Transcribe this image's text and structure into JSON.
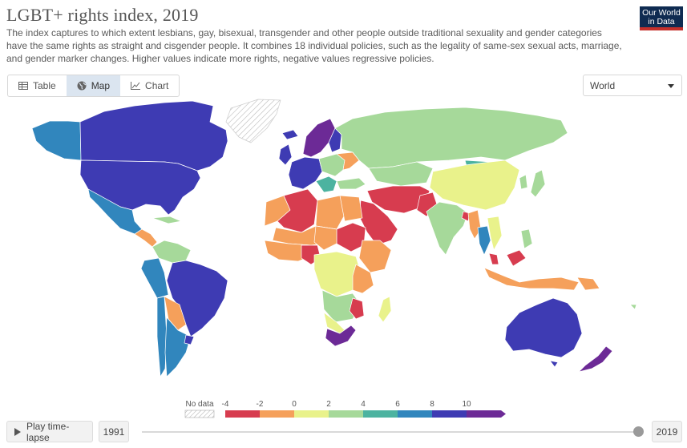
{
  "header": {
    "title": "LGBT+ rights index, 2019",
    "subtitle": "The index captures to which extent lesbians, gay, bisexual, transgender and other people outside traditional sexuality and gender categories have the same rights as straight and cisgender people. It combines 18 individual policies, such as the legality of same-sex sexual acts, marriage, and gender marker changes. Higher values indicate more rights, negative values regressive policies.",
    "logo_line1": "Our World",
    "logo_line2": "in Data"
  },
  "tabs": [
    {
      "label": "Table",
      "icon": "table-icon",
      "active": false
    },
    {
      "label": "Map",
      "icon": "globe-icon",
      "active": true
    },
    {
      "label": "Chart",
      "icon": "line-chart-icon",
      "active": false
    }
  ],
  "region_select": {
    "value": "World"
  },
  "legend": {
    "no_data_label": "No data",
    "ticks": [
      "-4",
      "-2",
      "0",
      "2",
      "4",
      "6",
      "8",
      "10"
    ],
    "bins": [
      {
        "from": -4,
        "to": -2,
        "color": "#d73c4f"
      },
      {
        "from": -2,
        "to": 0,
        "color": "#f5a05b"
      },
      {
        "from": 0,
        "to": 2,
        "color": "#e9f28b"
      },
      {
        "from": 2,
        "to": 4,
        "color": "#a6d99a"
      },
      {
        "from": 4,
        "to": 6,
        "color": "#4cb3a0"
      },
      {
        "from": 6,
        "to": 8,
        "color": "#3186bd"
      },
      {
        "from": 8,
        "to": 10,
        "color": "#3e3bb3"
      },
      {
        "from": 10,
        "to": 12,
        "color": "#6c2a96"
      }
    ]
  },
  "timeline": {
    "play_label": "Play time-lapse",
    "start_year": "1991",
    "end_year": "2019",
    "position": 1.0
  },
  "colors": {
    "purple": "#6c2a96",
    "indigo": "#3e3bb3",
    "blue": "#3186bd",
    "teal": "#4cb3a0",
    "green": "#a6d99a",
    "yellow": "#e9f28b",
    "orange": "#f5a05b",
    "red": "#d73c4f",
    "nodata": "#ffffff"
  }
}
